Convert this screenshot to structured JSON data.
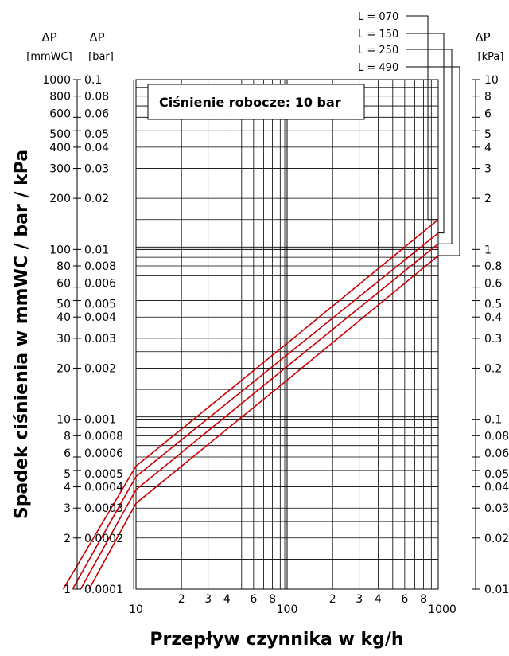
{
  "chart_data": {
    "type": "line",
    "title": "Ciśnienie robocze: 10 bar",
    "xlabel": "Przepływ czynnika w kg/h",
    "ylabel": "Spadek ciśnienia w mmWC / bar / kPa",
    "x_scale": "log",
    "y_scale": "log",
    "xlim": [
      10,
      1000
    ],
    "ylim": [
      1,
      1000
    ],
    "grid": true,
    "x_tick_labels": [
      "10",
      "2",
      "3",
      "4",
      "6",
      "8",
      "100",
      "2",
      "3",
      "4",
      "6",
      "8",
      "1000"
    ],
    "y_axes": {
      "mmwc": {
        "header": "ΔP",
        "unit": "[mmWC]",
        "tick_labels": [
          "1000",
          "800",
          "600",
          "500",
          "400",
          "300",
          "200",
          "100",
          "80",
          "60",
          "50",
          "40",
          "30",
          "20",
          "10",
          "8",
          "6",
          "5",
          "4",
          "3",
          "2",
          "1"
        ]
      },
      "bar": {
        "header": "ΔP",
        "unit": "[bar]",
        "tick_labels": [
          "0.1",
          "0.08",
          "0.06",
          "0.05",
          "0.04",
          "0.03",
          "0.02",
          "0.01",
          "0.008",
          "0.006",
          "0.005",
          "0.004",
          "0.003",
          "0.002",
          "0.001",
          "0.0008",
          "0.0006",
          "0.0005",
          "0.0004",
          "0.0003",
          "0.0002",
          "0.0001"
        ]
      },
      "kpa": {
        "header": "ΔP",
        "unit": "[kPa]",
        "tick_labels": [
          "10",
          "8",
          "6",
          "5",
          "4",
          "3",
          "2",
          "1",
          "0.8",
          "0.6",
          "0.5",
          "0.4",
          "0.3",
          "0.2",
          "0.1",
          "0.08",
          "0.06",
          "0.05",
          "0.04",
          "0.03",
          "0.02",
          "0.01"
        ]
      }
    },
    "series": [
      {
        "name": "L = 070",
        "color": "#cc0000",
        "x": [
          3.3,
          10,
          100,
          1000
        ],
        "y": [
          1,
          5.3,
          28,
          150
        ]
      },
      {
        "name": "L = 150",
        "color": "#cc0000",
        "x": [
          3.8,
          10,
          100,
          1000
        ],
        "y": [
          1,
          4.6,
          24,
          125
        ]
      },
      {
        "name": "L = 250",
        "color": "#cc0000",
        "x": [
          4.3,
          10,
          100,
          1000
        ],
        "y": [
          1,
          3.85,
          20.5,
          108
        ]
      },
      {
        "name": "L = 490",
        "color": "#cc0000",
        "x": [
          4.9,
          10,
          100,
          1000
        ],
        "y": [
          1,
          3.2,
          17,
          92
        ]
      }
    ]
  }
}
